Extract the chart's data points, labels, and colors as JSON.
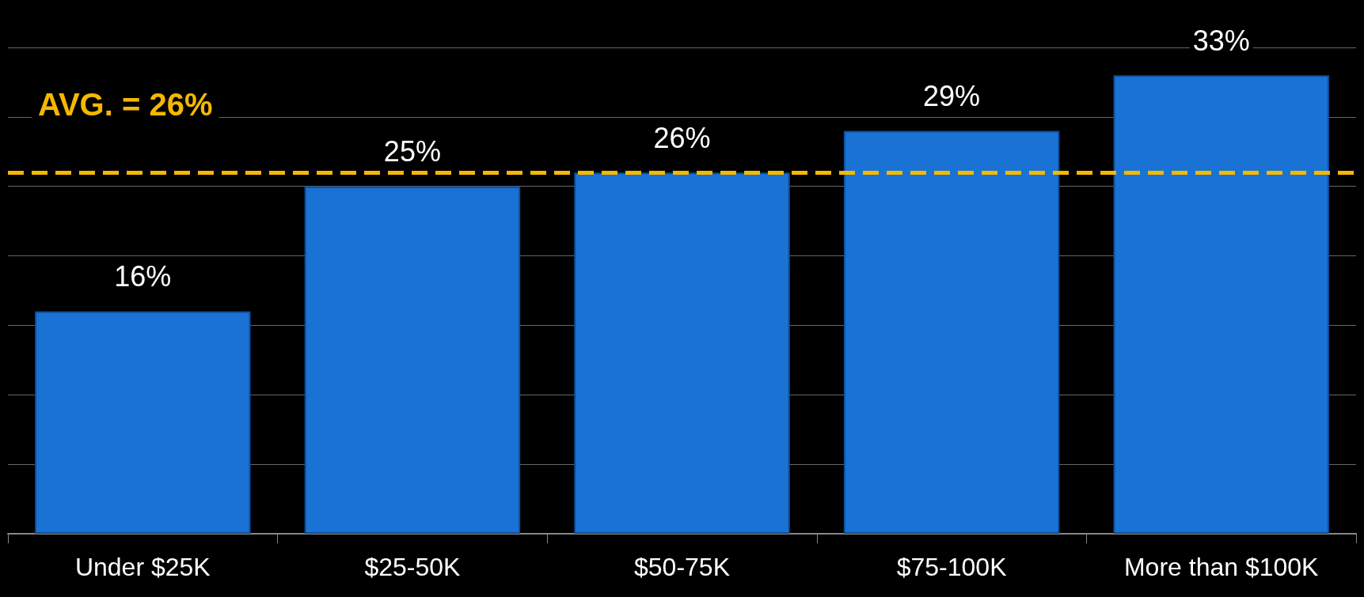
{
  "chart_data": {
    "type": "bar",
    "categories": [
      "Under $25K",
      "$25-50K",
      "$50-75K",
      "$75-100K",
      "More than $100K"
    ],
    "values": [
      16,
      25,
      26,
      29,
      33
    ],
    "color": "#1a73d4",
    "data_labels": true,
    "value_labels": [
      "16%",
      "25%",
      "26%",
      "29%",
      "33%"
    ],
    "ylim": [
      0,
      35
    ],
    "yticks": [
      {
        "value": 0,
        "label": null
      },
      {
        "value": 5,
        "label": null
      },
      {
        "value": 10,
        "label": null
      },
      {
        "value": 15,
        "label": null
      },
      {
        "value": 20,
        "label": null
      },
      {
        "value": 25,
        "label": null
      },
      {
        "value": 30,
        "label": null
      },
      {
        "value": 35,
        "label": null
      }
    ],
    "tick_labels": "x",
    "grid": "y",
    "ref_lines": [
      {
        "axis": "y",
        "value": 26,
        "label": "AVG. = 26%",
        "color": "#f5b800",
        "line_style": "dashed"
      }
    ]
  }
}
